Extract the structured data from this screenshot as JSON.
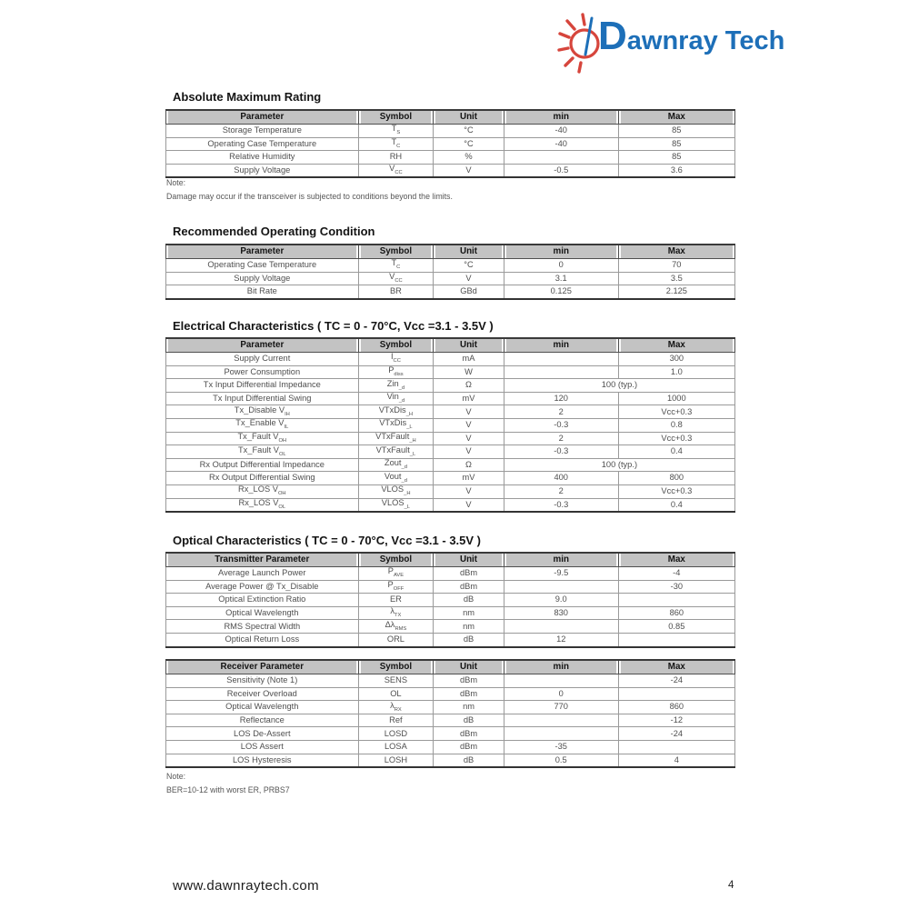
{
  "logo": {
    "brand": "Dawnray Tech",
    "sun_color": "#d6453c",
    "text_color": "#1d6fb8"
  },
  "sections": {
    "absolute_maximum": {
      "heading": "Absolute Maximum Rating",
      "note_label": "Note:",
      "note": "Damage may occur if the transceiver is subjected to conditions beyond the limits."
    },
    "recommended": {
      "heading": "Recommended Operating Condition"
    },
    "electrical": {
      "heading": "Electrical Characteristics ( TC = 0 - 70°C, Vcc =3.1 - 3.5V )"
    },
    "optical": {
      "heading": "Optical Characteristics ( TC = 0 - 70°C, Vcc =3.1 - 3.5V )",
      "note_label": "Note:",
      "note": "BER=10-12 with worst ER, PRBS7"
    }
  },
  "tables": {
    "absolute_maximum": {
      "headers": [
        "Parameter",
        "Symbol",
        "Unit",
        "min",
        "Max"
      ],
      "rows": [
        {
          "param": "Storage Temperature",
          "symbol": "T~S~",
          "unit": "°C",
          "min": "-40",
          "max": "85"
        },
        {
          "param": "Operating Case Temperature",
          "symbol": "T~C~",
          "unit": "°C",
          "min": "-40",
          "max": "85"
        },
        {
          "param": "Relative Humidity",
          "symbol": "RH",
          "unit": "%",
          "min": "",
          "max": "85"
        },
        {
          "param": "Supply Voltage",
          "symbol": "V~CC~",
          "unit": "V",
          "min": "-0.5",
          "max": "3.6"
        }
      ]
    },
    "recommended": {
      "headers": [
        "Parameter",
        "Symbol",
        "Unit",
        "min",
        "Max"
      ],
      "rows": [
        {
          "param": "Operating Case Temperature",
          "symbol": "T~C~",
          "unit": "°C",
          "min": "0",
          "max": "70"
        },
        {
          "param": "Supply Voltage",
          "symbol": "V~CC~",
          "unit": "V",
          "min": "3.1",
          "max": "3.5"
        },
        {
          "param": "Bit Rate",
          "symbol": "BR",
          "unit": "GBd",
          "min": "0.125",
          "max": "2.125"
        }
      ]
    },
    "electrical": {
      "headers": [
        "Parameter",
        "Symbol",
        "Unit",
        "min",
        "Max"
      ],
      "rows": [
        {
          "param": "Supply Current",
          "symbol": "I~CC~",
          "unit": "mA",
          "min": "",
          "max": "300"
        },
        {
          "param": "Power Consumption",
          "symbol": "P~diss~",
          "unit": "W",
          "min": "",
          "max": "1.0"
        },
        {
          "param": "Tx Input Differential Impedance",
          "symbol": "Zin~_d~",
          "unit": "Ω",
          "span": "100 (typ.)"
        },
        {
          "param": "Tx Input Differential Swing",
          "symbol": "Vin~_d~",
          "unit": "mV",
          "min": "120",
          "max": "1000"
        },
        {
          "param": "Tx_Disable V~IH~",
          "symbol": "VTxDis~_H~",
          "unit": "V",
          "min": "2",
          "max": "Vcc+0.3"
        },
        {
          "param": "Tx_Enable V~IL~",
          "symbol": "VTxDis~_L~",
          "unit": "V",
          "min": "-0.3",
          "max": "0.8"
        },
        {
          "param": "Tx_Fault V~OH~",
          "symbol": "VTxFault~_H~",
          "unit": "V",
          "min": "2",
          "max": "Vcc+0.3"
        },
        {
          "param": "Tx_Fault V~OL~",
          "symbol": "VTxFault~_L~",
          "unit": "V",
          "min": "-0.3",
          "max": "0.4"
        },
        {
          "param": "Rx Output Differential Impedance",
          "symbol": "Zout~_d~",
          "unit": "Ω",
          "span": "100 (typ.)"
        },
        {
          "param": "Rx Output Differential Swing",
          "symbol": "Vout~_d~",
          "unit": "mV",
          "min": "400",
          "max": "800"
        },
        {
          "param": "Rx_LOS V~OH~",
          "symbol": "VLOS~_H~",
          "unit": "V",
          "min": "2",
          "max": "Vcc+0.3"
        },
        {
          "param": "Rx_LOS V~OL~",
          "symbol": "VLOS~_L~",
          "unit": "V",
          "min": "-0.3",
          "max": "0.4"
        }
      ]
    },
    "transmitter": {
      "headers": [
        "Transmitter Parameter",
        "Symbol",
        "Unit",
        "min",
        "Max"
      ],
      "rows": [
        {
          "param": "Average Launch Power",
          "symbol": "P~AVE~",
          "unit": "dBm",
          "min": "-9.5",
          "max": "-4"
        },
        {
          "param": "Average Power @ Tx_Disable",
          "symbol": "P~OFF~",
          "unit": "dBm",
          "min": "",
          "max": "-30"
        },
        {
          "param": "Optical Extinction Ratio",
          "symbol": "ER",
          "unit": "dB",
          "min": "9.0",
          "max": ""
        },
        {
          "param": "Optical Wavelength",
          "symbol": "λ~TX~",
          "unit": "nm",
          "min": "830",
          "max": "860"
        },
        {
          "param": "RMS Spectral Width",
          "symbol": "Δλ~RMS~",
          "unit": "nm",
          "min": "",
          "max": "0.85"
        },
        {
          "param": "Optical Return Loss",
          "symbol": "ORL",
          "unit": "dB",
          "min": "12",
          "max": ""
        }
      ]
    },
    "receiver": {
      "headers": [
        "Receiver Parameter",
        "Symbol",
        "Unit",
        "min",
        "Max"
      ],
      "rows": [
        {
          "param": "Sensitivity (Note 1)",
          "symbol": "SENS",
          "unit": "dBm",
          "min": "",
          "max": "-24"
        },
        {
          "param": "Receiver Overload",
          "symbol": "OL",
          "unit": "dBm",
          "min": "0",
          "max": ""
        },
        {
          "param": "Optical Wavelength",
          "symbol": "λ~RX~",
          "unit": "nm",
          "min": "770",
          "max": "860"
        },
        {
          "param": "Reflectance",
          "symbol": "Ref",
          "unit": "dB",
          "min": "",
          "max": "-12"
        },
        {
          "param": "LOS De-Assert",
          "symbol": "LOSD",
          "unit": "dBm",
          "min": "",
          "max": "-24"
        },
        {
          "param": "LOS Assert",
          "symbol": "LOSA",
          "unit": "dBm",
          "min": "-35",
          "max": ""
        },
        {
          "param": "LOS Hysteresis",
          "symbol": "LOSH",
          "unit": "dB",
          "min": "0.5",
          "max": "4"
        }
      ]
    }
  },
  "footer": {
    "website": "www.dawnraytech.com",
    "page_number": "4"
  }
}
